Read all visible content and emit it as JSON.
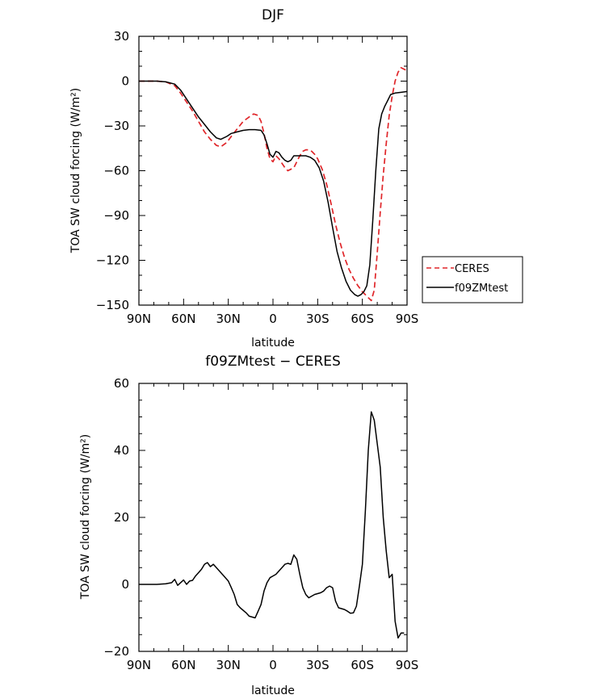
{
  "chart_data": [
    {
      "type": "line",
      "title": "DJF",
      "xlabel": "latitude",
      "ylabel": "TOA SW cloud forcing (W/m²)",
      "xlim": [
        90,
        -90
      ],
      "ylim": [
        -150,
        30
      ],
      "xticks": [
        90,
        60,
        30,
        0,
        -30,
        -60,
        -90
      ],
      "xtick_labels": [
        "90N",
        "60N",
        "30N",
        "0",
        "30S",
        "60S",
        "90S"
      ],
      "yticks": [
        30,
        0,
        -30,
        -60,
        -90,
        -120,
        -150
      ],
      "ytick_labels": [
        "30",
        "0",
        "−30",
        "−60",
        "−90",
        "−120",
        "−150"
      ],
      "legend_position": "right",
      "series": [
        {
          "name": "CERES",
          "color": "#e0262a",
          "dash": "dashed",
          "points": [
            [
              90,
              0
            ],
            [
              84,
              0
            ],
            [
              78,
              0
            ],
            [
              72,
              -0.5
            ],
            [
              66,
              -3
            ],
            [
              62,
              -8
            ],
            [
              58,
              -14
            ],
            [
              54,
              -20
            ],
            [
              50,
              -27
            ],
            [
              46,
              -34
            ],
            [
              42,
              -39
            ],
            [
              38,
              -43
            ],
            [
              35,
              -44
            ],
            [
              31,
              -41
            ],
            [
              28,
              -37
            ],
            [
              24,
              -32
            ],
            [
              20,
              -27
            ],
            [
              16,
              -24
            ],
            [
              13,
              -22
            ],
            [
              10,
              -23
            ],
            [
              8,
              -27
            ],
            [
              6,
              -35
            ],
            [
              4,
              -45
            ],
            [
              2,
              -52
            ],
            [
              0,
              -54
            ],
            [
              -2,
              -50
            ],
            [
              -4,
              -52
            ],
            [
              -6,
              -55
            ],
            [
              -8,
              -58
            ],
            [
              -10,
              -60
            ],
            [
              -12,
              -59
            ],
            [
              -14,
              -58
            ],
            [
              -16,
              -54
            ],
            [
              -18,
              -50
            ],
            [
              -20,
              -47
            ],
            [
              -22,
              -46
            ],
            [
              -24,
              -46
            ],
            [
              -26,
              -47
            ],
            [
              -28,
              -49
            ],
            [
              -30,
              -52
            ],
            [
              -33,
              -59
            ],
            [
              -36,
              -69
            ],
            [
              -39,
              -82
            ],
            [
              -42,
              -96
            ],
            [
              -45,
              -108
            ],
            [
              -48,
              -118
            ],
            [
              -51,
              -126
            ],
            [
              -54,
              -132
            ],
            [
              -57,
              -137
            ],
            [
              -60,
              -141
            ],
            [
              -62,
              -143
            ],
            [
              -64,
              -145
            ],
            [
              -66,
              -147
            ],
            [
              -68,
              -140
            ],
            [
              -70,
              -115
            ],
            [
              -72,
              -88
            ],
            [
              -74,
              -63
            ],
            [
              -76,
              -42
            ],
            [
              -78,
              -23
            ],
            [
              -80,
              -10
            ],
            [
              -82,
              0
            ],
            [
              -84,
              6
            ],
            [
              -86,
              9
            ],
            [
              -88,
              8
            ],
            [
              -90,
              7
            ]
          ]
        },
        {
          "name": "f09ZMtest",
          "color": "#000000",
          "dash": "solid",
          "points": [
            [
              90,
              0
            ],
            [
              84,
              0
            ],
            [
              78,
              0
            ],
            [
              72,
              -0.5
            ],
            [
              66,
              -2
            ],
            [
              62,
              -6
            ],
            [
              58,
              -12
            ],
            [
              54,
              -18
            ],
            [
              50,
              -24
            ],
            [
              46,
              -29
            ],
            [
              42,
              -34
            ],
            [
              38,
              -38
            ],
            [
              35,
              -39
            ],
            [
              31,
              -37
            ],
            [
              28,
              -35
            ],
            [
              24,
              -34
            ],
            [
              20,
              -33
            ],
            [
              16,
              -32.5
            ],
            [
              12,
              -32.5
            ],
            [
              8,
              -33
            ],
            [
              6,
              -36
            ],
            [
              4,
              -42
            ],
            [
              2,
              -49
            ],
            [
              0,
              -51
            ],
            [
              -2,
              -47
            ],
            [
              -4,
              -48
            ],
            [
              -6,
              -51
            ],
            [
              -8,
              -53
            ],
            [
              -10,
              -54
            ],
            [
              -12,
              -53
            ],
            [
              -14,
              -50
            ],
            [
              -16,
              -50
            ],
            [
              -18,
              -50
            ],
            [
              -20,
              -50
            ],
            [
              -22,
              -50
            ],
            [
              -25,
              -51
            ],
            [
              -28,
              -53
            ],
            [
              -31,
              -58
            ],
            [
              -34,
              -67
            ],
            [
              -37,
              -81
            ],
            [
              -40,
              -98
            ],
            [
              -43,
              -114
            ],
            [
              -46,
              -125
            ],
            [
              -49,
              -134
            ],
            [
              -52,
              -140
            ],
            [
              -55,
              -143
            ],
            [
              -57,
              -144
            ],
            [
              -59,
              -143
            ],
            [
              -61,
              -141
            ],
            [
              -63,
              -137
            ],
            [
              -65,
              -123
            ],
            [
              -67,
              -93
            ],
            [
              -69,
              -60
            ],
            [
              -71,
              -32
            ],
            [
              -73,
              -22
            ],
            [
              -75,
              -17
            ],
            [
              -77,
              -13
            ],
            [
              -79,
              -9
            ],
            [
              -82,
              -8
            ],
            [
              -86,
              -7.5
            ],
            [
              -90,
              -7
            ]
          ]
        }
      ]
    },
    {
      "type": "line",
      "title": "f09ZMtest − CERES",
      "xlabel": "latitude",
      "ylabel": "TOA SW cloud forcing (W/m²)",
      "xlim": [
        90,
        -90
      ],
      "ylim": [
        -20,
        60
      ],
      "xticks": [
        90,
        60,
        30,
        0,
        -30,
        -60,
        -90
      ],
      "xtick_labels": [
        "90N",
        "60N",
        "30N",
        "0",
        "30S",
        "60S",
        "90S"
      ],
      "yticks": [
        60,
        40,
        20,
        0,
        -20
      ],
      "ytick_labels": [
        "60",
        "40",
        "20",
        "0",
        "−20"
      ],
      "series": [
        {
          "color": "#000000",
          "dash": "solid",
          "points": [
            [
              90,
              0
            ],
            [
              84,
              0
            ],
            [
              78,
              0
            ],
            [
              72,
              0.2
            ],
            [
              68,
              0.5
            ],
            [
              66,
              1.5
            ],
            [
              64,
              -0.3
            ],
            [
              62,
              0.5
            ],
            [
              60,
              1.3
            ],
            [
              58,
              0
            ],
            [
              56,
              1
            ],
            [
              54,
              1.2
            ],
            [
              52,
              2.5
            ],
            [
              50,
              3.5
            ],
            [
              48,
              4.5
            ],
            [
              46,
              6
            ],
            [
              44,
              6.5
            ],
            [
              42,
              5.3
            ],
            [
              40,
              6
            ],
            [
              38,
              5
            ],
            [
              36,
              4
            ],
            [
              34,
              3
            ],
            [
              30,
              1
            ],
            [
              28,
              -1
            ],
            [
              26,
              -3
            ],
            [
              24,
              -6
            ],
            [
              22,
              -7
            ],
            [
              18,
              -8.5
            ],
            [
              16,
              -9.5
            ],
            [
              12,
              -10
            ],
            [
              10,
              -8
            ],
            [
              8,
              -6
            ],
            [
              6,
              -2
            ],
            [
              4,
              0.5
            ],
            [
              2,
              2
            ],
            [
              0,
              2.5
            ],
            [
              -2,
              3
            ],
            [
              -4,
              4
            ],
            [
              -6,
              5
            ],
            [
              -8,
              6
            ],
            [
              -10,
              6.3
            ],
            [
              -12,
              6
            ],
            [
              -14,
              8.8
            ],
            [
              -16,
              7.5
            ],
            [
              -18,
              3
            ],
            [
              -20,
              -1
            ],
            [
              -22,
              -3
            ],
            [
              -24,
              -4
            ],
            [
              -26,
              -3.5
            ],
            [
              -28,
              -3
            ],
            [
              -32,
              -2.5
            ],
            [
              -34,
              -2
            ],
            [
              -36,
              -1
            ],
            [
              -38,
              -0.5
            ],
            [
              -40,
              -1
            ],
            [
              -42,
              -5
            ],
            [
              -44,
              -7
            ],
            [
              -48,
              -7.5
            ],
            [
              -50,
              -8
            ],
            [
              -52,
              -8.6
            ],
            [
              -54,
              -8.5
            ],
            [
              -56,
              -6.5
            ],
            [
              -58,
              -0.5
            ],
            [
              -60,
              6
            ],
            [
              -62,
              22
            ],
            [
              -64,
              40
            ],
            [
              -66,
              51.5
            ],
            [
              -68,
              49
            ],
            [
              -70,
              42
            ],
            [
              -72,
              35
            ],
            [
              -74,
              20
            ],
            [
              -76,
              10
            ],
            [
              -78,
              2
            ],
            [
              -80,
              3
            ],
            [
              -82,
              -11
            ],
            [
              -84,
              -16
            ],
            [
              -86,
              -14.5
            ],
            [
              -88,
              -14.5
            ]
          ]
        }
      ]
    }
  ]
}
